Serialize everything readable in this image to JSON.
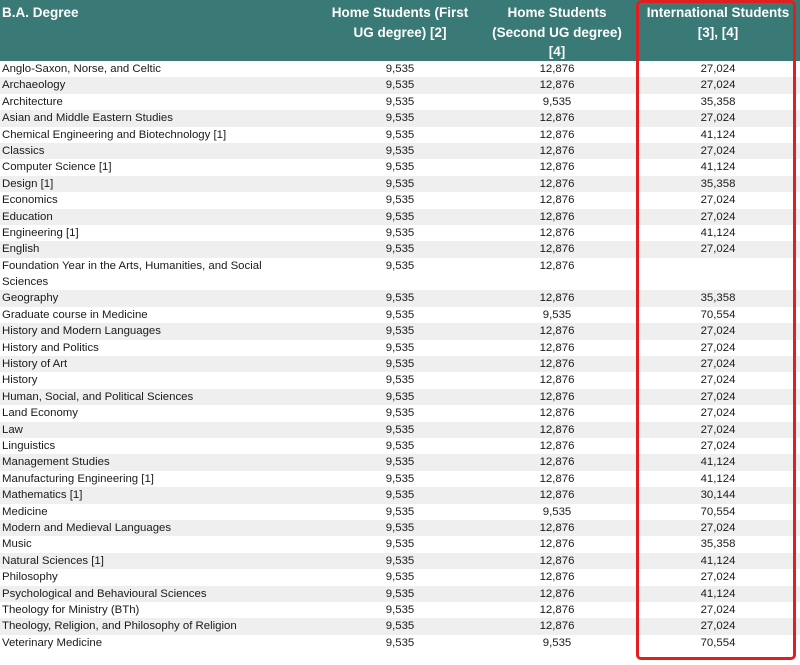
{
  "headers": {
    "degree": "B.A. Degree",
    "home_first": "Home Students (First UG degree) [2]",
    "home_second": "Home Students (Second UG degree) [4]",
    "international": "International Students [3], [4]"
  },
  "rows": [
    {
      "name": "Anglo-Saxon, Norse, and Celtic",
      "home_first": "9,535",
      "home_second": "12,876",
      "international": "27,024"
    },
    {
      "name": "Archaeology",
      "home_first": "9,535",
      "home_second": "12,876",
      "international": "27,024"
    },
    {
      "name": "Architecture",
      "home_first": "9,535",
      "home_second": "9,535",
      "international": "35,358"
    },
    {
      "name": "Asian and Middle Eastern Studies",
      "home_first": "9,535",
      "home_second": "12,876",
      "international": "27,024"
    },
    {
      "name": "Chemical Engineering and Biotechnology [1]",
      "home_first": "9,535",
      "home_second": "12,876",
      "international": "41,124"
    },
    {
      "name": "Classics",
      "home_first": "9,535",
      "home_second": "12,876",
      "international": "27,024"
    },
    {
      "name": "Computer Science [1]",
      "home_first": "9,535",
      "home_second": "12,876",
      "international": "41,124"
    },
    {
      "name": "Design [1]",
      "home_first": "9,535",
      "home_second": "12,876",
      "international": "35,358"
    },
    {
      "name": "Economics",
      "home_first": "9,535",
      "home_second": "12,876",
      "international": "27,024"
    },
    {
      "name": "Education",
      "home_first": "9,535",
      "home_second": "12,876",
      "international": "27,024"
    },
    {
      "name": "Engineering [1]",
      "home_first": "9,535",
      "home_second": "12,876",
      "international": "41,124"
    },
    {
      "name": "English",
      "home_first": "9,535",
      "home_second": "12,876",
      "international": "27,024"
    },
    {
      "name": "Foundation Year in the Arts, Humanities, and Social Sciences",
      "home_first": "9,535",
      "home_second": "12,876",
      "international": ""
    },
    {
      "name": "Geography",
      "home_first": "9,535",
      "home_second": "12,876",
      "international": "35,358"
    },
    {
      "name": "Graduate course in Medicine",
      "home_first": "9,535",
      "home_second": "9,535",
      "international": "70,554"
    },
    {
      "name": "History and Modern Languages",
      "home_first": "9,535",
      "home_second": "12,876",
      "international": "27,024"
    },
    {
      "name": "History and Politics",
      "home_first": "9,535",
      "home_second": "12,876",
      "international": "27,024"
    },
    {
      "name": "History of Art",
      "home_first": "9,535",
      "home_second": "12,876",
      "international": "27,024"
    },
    {
      "name": "History",
      "home_first": "9,535",
      "home_second": "12,876",
      "international": "27,024"
    },
    {
      "name": "Human, Social, and Political Sciences",
      "home_first": "9,535",
      "home_second": "12,876",
      "international": "27,024"
    },
    {
      "name": "Land Economy",
      "home_first": "9,535",
      "home_second": "12,876",
      "international": "27,024"
    },
    {
      "name": "Law",
      "home_first": "9,535",
      "home_second": "12,876",
      "international": "27,024"
    },
    {
      "name": "Linguistics",
      "home_first": "9,535",
      "home_second": "12,876",
      "international": "27,024"
    },
    {
      "name": "Management Studies",
      "home_first": "9,535",
      "home_second": "12,876",
      "international": "41,124"
    },
    {
      "name": "Manufacturing Engineering [1]",
      "home_first": "9,535",
      "home_second": "12,876",
      "international": "41,124"
    },
    {
      "name": "Mathematics [1]",
      "home_first": "9,535",
      "home_second": "12,876",
      "international": "30,144"
    },
    {
      "name": "Medicine",
      "home_first": "9,535",
      "home_second": "9,535",
      "international": "70,554"
    },
    {
      "name": "Modern and Medieval Languages",
      "home_first": "9,535",
      "home_second": "12,876",
      "international": "27,024"
    },
    {
      "name": "Music",
      "home_first": "9,535",
      "home_second": "12,876",
      "international": "35,358"
    },
    {
      "name": "Natural Sciences [1]",
      "home_first": "9,535",
      "home_second": "12,876",
      "international": "41,124"
    },
    {
      "name": "Philosophy",
      "home_first": "9,535",
      "home_second": "12,876",
      "international": "27,024"
    },
    {
      "name": "Psychological and Behavioural Sciences",
      "home_first": "9,535",
      "home_second": "12,876",
      "international": "41,124"
    },
    {
      "name": "Theology for Ministry (BTh)",
      "home_first": "9,535",
      "home_second": "12,876",
      "international": "27,024"
    },
    {
      "name": "Theology, Religion, and Philosophy of Religion",
      "home_first": "9,535",
      "home_second": "12,876",
      "international": "27,024"
    },
    {
      "name": "Veterinary Medicine",
      "home_first": "9,535",
      "home_second": "9,535",
      "international": "70,554"
    }
  ],
  "colors": {
    "header_bg": "#3a7a76",
    "highlight_border": "#e02020",
    "stripe": "#efefef"
  }
}
